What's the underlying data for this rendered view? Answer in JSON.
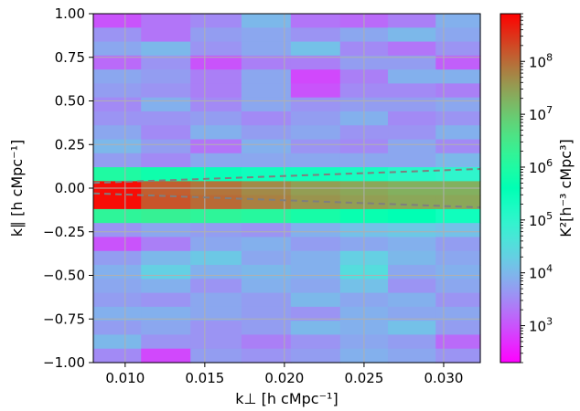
{
  "chart_data": {
    "type": "heatmap",
    "title": "",
    "xlabel": "k⊥ [h cMpc⁻¹]",
    "ylabel": "k∥ [h cMpc⁻¹]",
    "colorbar_label": "K²[h⁻³ cMpc³]",
    "xlim": [
      0.008,
      0.0323
    ],
    "ylim": [
      -1.0,
      1.0
    ],
    "x_ticks": [
      0.01,
      0.015,
      0.02,
      0.025,
      0.03
    ],
    "x_tick_labels": [
      "0.010",
      "0.015",
      "0.020",
      "0.025",
      "0.030"
    ],
    "y_ticks": [
      1.0,
      0.75,
      0.5,
      0.25,
      0.0,
      -0.25,
      -0.5,
      -0.75,
      -1.0
    ],
    "y_tick_labels": [
      "1.00",
      "0.75",
      "0.50",
      "0.25",
      "0.00",
      "−0.25",
      "−0.50",
      "−0.75",
      "−1.00"
    ],
    "colorbar": {
      "scale": "log",
      "range": [
        200,
        800000000
      ],
      "colormap": "rainbow",
      "ticks": [
        1000,
        10000,
        100000,
        1000000,
        10000000,
        100000000
      ],
      "tick_labels": [
        {
          "base": "10",
          "exp": "3"
        },
        {
          "base": "10",
          "exp": "4"
        },
        {
          "base": "10",
          "exp": "5"
        },
        {
          "base": "10",
          "exp": "6"
        },
        {
          "base": "10",
          "exp": "7"
        },
        {
          "base": "10",
          "exp": "8"
        }
      ]
    },
    "x_bin_edges": [
      0.008,
      0.011,
      0.0141,
      0.0173,
      0.0204,
      0.0235,
      0.0265,
      0.0295,
      0.0323
    ],
    "y_rows": 25,
    "log10_values": [
      [
        3.0,
        3.3,
        3.5,
        4.0,
        3.3,
        3.2,
        3.4,
        3.9
      ],
      [
        3.6,
        3.3,
        3.7,
        3.8,
        3.6,
        3.8,
        4.0,
        3.8
      ],
      [
        3.8,
        4.0,
        3.6,
        3.8,
        4.1,
        3.5,
        3.3,
        3.6
      ],
      [
        3.2,
        3.6,
        3.0,
        3.4,
        3.4,
        3.7,
        3.7,
        3.1
      ],
      [
        3.8,
        3.7,
        3.4,
        3.8,
        2.9,
        3.4,
        3.9,
        3.9
      ],
      [
        3.7,
        3.6,
        3.4,
        3.8,
        3.0,
        3.5,
        3.5,
        3.4
      ],
      [
        3.5,
        3.9,
        3.5,
        3.8,
        3.6,
        3.7,
        3.7,
        3.8
      ],
      [
        3.6,
        3.6,
        3.7,
        3.5,
        3.7,
        3.9,
        3.5,
        3.6
      ],
      [
        3.8,
        3.5,
        3.9,
        3.7,
        3.8,
        3.6,
        3.6,
        3.9
      ],
      [
        4.0,
        3.7,
        3.3,
        3.9,
        3.6,
        3.5,
        3.8,
        3.5
      ],
      [
        3.7,
        3.5,
        3.8,
        3.8,
        3.8,
        3.8,
        3.8,
        4.0
      ],
      [
        6.0,
        5.8,
        5.5,
        5.4,
        5.4,
        5.3,
        5.1,
        5.0
      ],
      [
        8.8,
        8.1,
        7.9,
        7.7,
        7.5,
        7.4,
        7.3,
        7.3
      ],
      [
        8.8,
        8.2,
        8.0,
        7.8,
        7.6,
        7.5,
        7.4,
        7.4
      ],
      [
        6.2,
        6.3,
        6.2,
        6.1,
        5.9,
        5.7,
        5.6,
        5.4
      ],
      [
        3.6,
        3.8,
        3.7,
        3.6,
        3.9,
        4.1,
        4.2,
        4.1
      ],
      [
        3.0,
        3.4,
        3.8,
        3.9,
        3.7,
        3.8,
        3.9,
        3.7
      ],
      [
        3.7,
        4.0,
        4.2,
        3.8,
        3.9,
        4.3,
        4.0,
        3.8
      ],
      [
        3.9,
        4.3,
        3.9,
        4.0,
        3.9,
        4.5,
        3.8,
        3.9
      ],
      [
        3.8,
        3.9,
        3.6,
        3.9,
        3.8,
        4.1,
        3.6,
        3.8
      ],
      [
        3.7,
        3.6,
        3.8,
        3.7,
        4.0,
        3.8,
        3.9,
        3.6
      ],
      [
        3.9,
        3.9,
        3.8,
        3.7,
        3.6,
        3.9,
        3.8,
        3.8
      ],
      [
        3.7,
        3.8,
        3.6,
        3.7,
        4.0,
        3.9,
        4.1,
        3.7
      ],
      [
        4.0,
        3.6,
        3.6,
        3.4,
        3.6,
        3.8,
        3.7,
        3.2
      ],
      [
        3.5,
        2.9,
        3.7,
        3.6,
        3.7,
        3.9,
        3.8,
        3.6
      ]
    ],
    "horizon_lines": {
      "style": "dashed",
      "color": "#7f7f7f",
      "points": [
        {
          "x": 0.008,
          "y": 0.03
        },
        {
          "x": 0.0323,
          "y": 0.11
        }
      ],
      "symmetric": true
    },
    "grid": true
  }
}
